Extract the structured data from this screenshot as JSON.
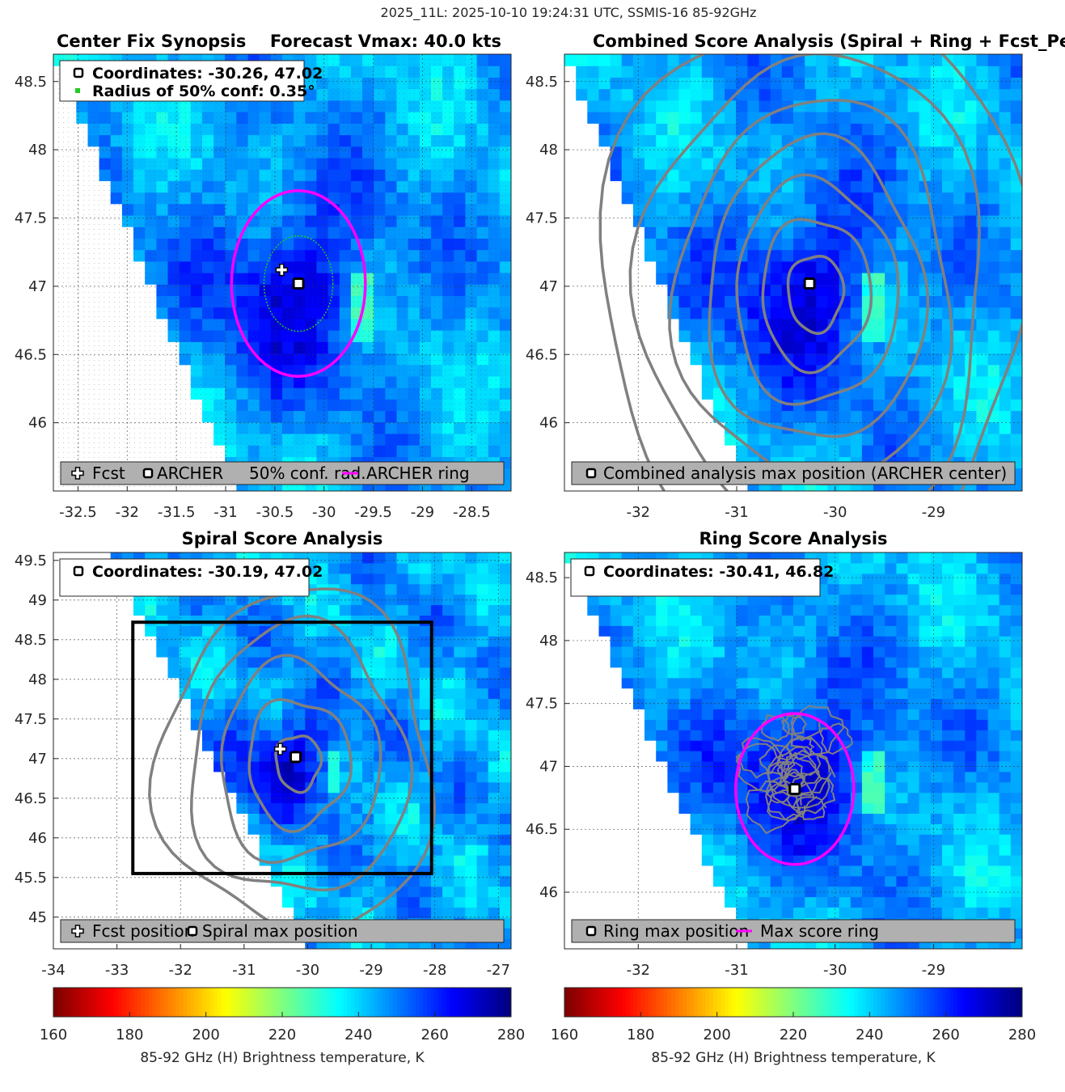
{
  "figure": {
    "suptitle": "2025_11L: 2025-10-10 19:24:31 UTC, SSMIS-16 85-92GHz"
  },
  "colors": {
    "contour": "#808080",
    "ring": "#ff00ff",
    "conf_circle": "#22cc22",
    "swath_edge": "#ffffff",
    "legend_bg": "#b0b0b0"
  },
  "colorbar": {
    "label": "85-92 GHz (H) Brightness temperature, K",
    "ticks": [
      "160",
      "180",
      "200",
      "220",
      "240",
      "260",
      "280"
    ],
    "range": [
      160,
      280
    ],
    "colormap": "jet_reversed"
  },
  "chart_data": [
    {
      "type": "heatmap",
      "id": "center_fix",
      "title_left": "Center Fix Synopsis",
      "title_right": "Forecast Vmax: 40.0 kts",
      "xlim": [
        -32.75,
        -28.1
      ],
      "ylim": [
        45.5,
        48.7
      ],
      "xticks": [
        -32.5,
        -32,
        -31.5,
        -31,
        -30.5,
        -30,
        -29.5,
        -29,
        -28.5
      ],
      "xtick_labels": [
        "-32.5",
        "-32",
        "-31.5",
        "-31",
        "-30.5",
        "-30",
        "-29.5",
        "-29",
        "-28.5"
      ],
      "yticks": [
        46,
        46.5,
        47,
        47.5,
        48,
        48.5
      ],
      "ytick_labels": [
        "46",
        "46.5",
        "47",
        "47.5",
        "48",
        "48.5"
      ],
      "archer": [
        -30.26,
        47.02
      ],
      "fcst": [
        -30.43,
        47.12
      ],
      "ring_radius_deg": 0.68,
      "conf_radius_deg": 0.35,
      "coord_text": "Coordinates: -30.26, 47.02",
      "radius_text": "Radius of 50% conf: 0.35°",
      "legend": {
        "fcst": "Fcst",
        "archer": "ARCHER",
        "conf": "50% conf. rad.",
        "ring": "ARCHER ring"
      }
    },
    {
      "type": "heatmap",
      "id": "combined",
      "title": "Combined Score Analysis (Spiral + Ring + Fcst_Pe",
      "xlim": [
        -32.75,
        -28.1
      ],
      "ylim": [
        45.5,
        48.7
      ],
      "xticks": [
        -32,
        -31,
        -30,
        -29
      ],
      "xtick_labels": [
        "-32",
        "-31",
        "-30",
        "-29"
      ],
      "yticks": [
        46,
        46.5,
        47,
        47.5,
        48,
        48.5
      ],
      "ytick_labels": [
        "46",
        "46.5",
        "47",
        "47.5",
        "48",
        "48.5"
      ],
      "max_position": [
        -30.26,
        47.02
      ],
      "legend": {
        "marker": "Combined analysis max position (ARCHER center)"
      }
    },
    {
      "type": "heatmap",
      "id": "spiral",
      "title": "Spiral Score Analysis",
      "xlim": [
        -34,
        -26.8
      ],
      "ylim": [
        44.6,
        49.6
      ],
      "xticks": [
        -34,
        -33,
        -32,
        -31,
        -30,
        -29,
        -28,
        -27
      ],
      "xtick_labels": [
        "-34",
        "-33",
        "-32",
        "-31",
        "-30",
        "-29",
        "-28",
        "-27"
      ],
      "yticks": [
        45,
        45.5,
        46,
        46.5,
        47,
        47.5,
        48,
        48.5,
        49,
        49.5
      ],
      "ytick_labels": [
        "45",
        "45.5",
        "46",
        "46.5",
        "47",
        "47.5",
        "48",
        "48.5",
        "49",
        "49.5"
      ],
      "max_position": [
        -30.19,
        47.02
      ],
      "fcst": [
        -30.43,
        47.12
      ],
      "search_box": {
        "lon": [
          -32.75,
          -28.05
        ],
        "lat": [
          45.55,
          48.72
        ]
      },
      "coord_text": "Coordinates: -30.19, 47.02",
      "legend": {
        "fcst": "Fcst position",
        "marker": "Spiral max position"
      }
    },
    {
      "type": "heatmap",
      "id": "ring",
      "title": "Ring Score Analysis",
      "xlim": [
        -32.75,
        -28.1
      ],
      "ylim": [
        45.55,
        48.7
      ],
      "xticks": [
        -32,
        -31,
        -30,
        -29
      ],
      "xtick_labels": [
        "-32",
        "-31",
        "-30",
        "-29"
      ],
      "yticks": [
        46,
        46.5,
        47,
        47.5,
        48,
        48.5
      ],
      "ytick_labels": [
        "46",
        "46.5",
        "47",
        "47.5",
        "48",
        "48.5"
      ],
      "max_position": [
        -30.41,
        46.82
      ],
      "ring_radius_deg": 0.6,
      "coord_text": "Coordinates: -30.41, 46.82",
      "legend": {
        "marker": "Ring max position",
        "ring": "Max score ring"
      }
    }
  ]
}
